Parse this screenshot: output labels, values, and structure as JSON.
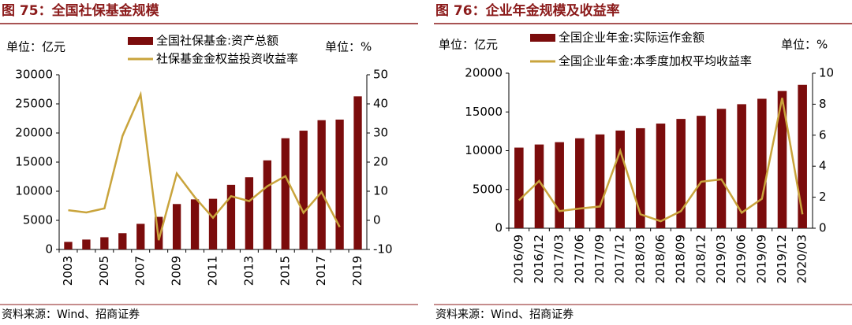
{
  "chart_data": [
    {
      "type": "combo",
      "title": "图 75：全国社保基金规模",
      "y_unit_label": "单位：亿元",
      "y2_unit_label": "单位：%",
      "source": "资料来源：Wind、招商证券",
      "categories": [
        "2003",
        null,
        "2005",
        null,
        "2007",
        null,
        "2009",
        null,
        "2011",
        null,
        "2013",
        null,
        "2015",
        null,
        "2017",
        null,
        "2019"
      ],
      "series": [
        {
          "name": "全国社保基金:资产总额",
          "type": "bar",
          "color": "#7b0c0c",
          "axis": "y",
          "values": [
            1300,
            1700,
            2100,
            2800,
            4400,
            5600,
            7800,
            8600,
            8700,
            11100,
            12400,
            15300,
            19100,
            20400,
            22200,
            22300,
            26300
          ]
        },
        {
          "name": "社保基金金权益投资收益率",
          "type": "line",
          "color": "#c9a43c",
          "axis": "y2",
          "values": [
            3.5,
            2.7,
            4.1,
            29,
            43.2,
            -6.8,
            16.1,
            7.9,
            0.9,
            8.3,
            6.6,
            11.7,
            15.2,
            2.6,
            9.7,
            -2.3,
            null
          ]
        }
      ],
      "ylim": [
        0,
        30000
      ],
      "yticks": [
        0,
        5000,
        10000,
        15000,
        20000,
        25000,
        30000
      ],
      "y2lim": [
        -10,
        50
      ],
      "y2ticks": [
        -10,
        0,
        10,
        20,
        30,
        40,
        50
      ]
    },
    {
      "type": "combo",
      "title": "图 76：企业年金规模及收益率",
      "y_unit_label": "单位：亿元",
      "y2_unit_label": "单位：%",
      "source": "资料来源：Wind、招商证券",
      "categories": [
        "2016/09",
        "2016/12",
        "2017/03",
        "2017/06",
        "2017/09",
        "2017/12",
        "2018/03",
        "2018/06",
        "2018/09",
        "2018/12",
        "2019/03",
        "2019/06",
        "2019/09",
        "2019/12",
        "2020/03"
      ],
      "series": [
        {
          "name": "全国企业年金:实际运作金额",
          "type": "bar",
          "color": "#7b0c0c",
          "axis": "y",
          "values": [
            10400,
            10800,
            11100,
            11600,
            12100,
            12600,
            12900,
            13500,
            14100,
            14500,
            15400,
            16000,
            16700,
            17700,
            18500
          ]
        },
        {
          "name": "全国企业年金:本季度加权平均收益率",
          "type": "line",
          "color": "#c9a43c",
          "axis": "y2",
          "values": [
            1.8,
            3.05,
            1.1,
            1.27,
            1.4,
            5.0,
            0.9,
            0.45,
            1.1,
            3.0,
            3.15,
            1.0,
            1.9,
            8.4,
            0.9
          ]
        }
      ],
      "ylim": [
        0,
        20000
      ],
      "yticks": [
        0,
        5000,
        10000,
        15000,
        20000
      ],
      "y2lim": [
        0,
        10
      ],
      "y2ticks": [
        0,
        2,
        4,
        6,
        8,
        10
      ]
    }
  ]
}
